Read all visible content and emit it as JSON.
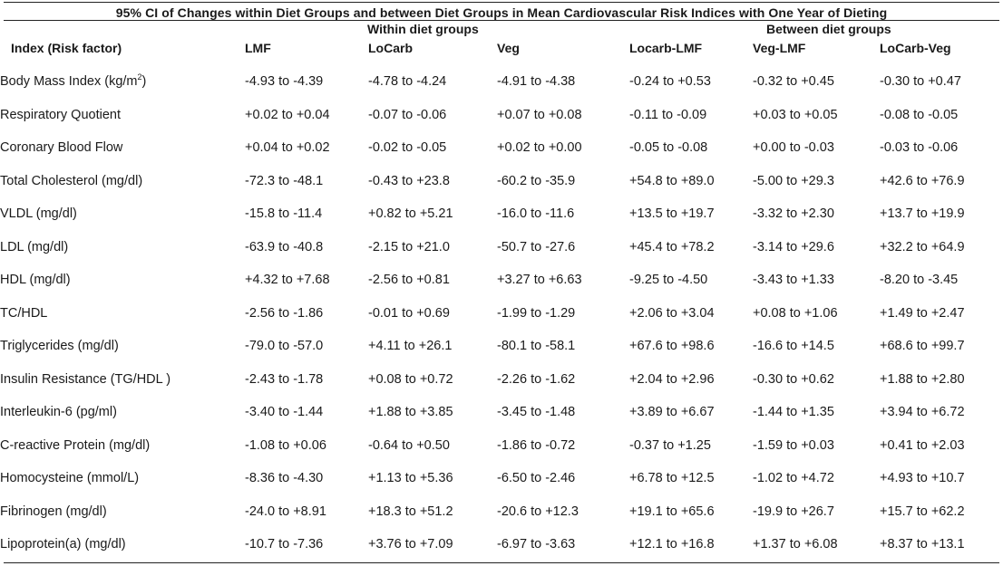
{
  "title": "95% CI of Changes within Diet Groups and between Diet Groups  in Mean Cardiovascular Risk Indices with One Year of Dieting",
  "groups": {
    "within": "Within diet groups",
    "between": "Between diet groups"
  },
  "columns": [
    "Index (Risk factor)",
    "LMF",
    "LoCarb",
    "Veg",
    "Locarb-LMF",
    "Veg-LMF",
    "LoCarb-Veg"
  ],
  "rows": [
    {
      "index": "Body Mass Index (kg/m",
      "index_sup": "2",
      "index_suffix": ")",
      "lmf": "-4.93 to -4.39",
      "locarb": " -4.78 to -4.24",
      "veg": "-4.91 to -4.38",
      "locarb_lmf": "-0.24 to +0.53",
      "veg_lmf": "-0.32 to +0.45",
      "locarb_veg": "-0.30 to +0.47"
    },
    {
      "index": "Respiratory Quotient",
      "lmf": "+0.02 to +0.04",
      "locarb": "-0.07 to -0.06",
      "veg": "+0.07 to +0.08",
      "locarb_lmf": "-0.11 to -0.09",
      "veg_lmf": "+0.03 to +0.05",
      "locarb_veg": "-0.08 to -0.05"
    },
    {
      "index": "Coronary Blood Flow",
      "lmf": "+0.04 to +0.02",
      "locarb": "-0.02 to -0.05",
      "veg": "+0.02 to +0.00",
      "locarb_lmf": "-0.05 to -0.08",
      "veg_lmf": "+0.00 to -0.03",
      "locarb_veg": "-0.03 to -0.06"
    },
    {
      "index": "Total Cholesterol (mg/dl)",
      "lmf": "-72.3 to -48.1",
      "locarb": "-0.43 to +23.8",
      "veg": "-60.2 to -35.9",
      "locarb_lmf": "+54.8 to +89.0",
      "veg_lmf": "-5.00 to +29.3",
      "locarb_veg": "+42.6 to +76.9"
    },
    {
      "index": "VLDL (mg/dl)",
      "lmf": "-15.8 to -11.4",
      "locarb": "+0.82 to +5.21",
      "veg": "-16.0 to -11.6",
      "locarb_lmf": "+13.5 to +19.7",
      "veg_lmf": "-3.32 to +2.30",
      "locarb_veg": "+13.7 to +19.9"
    },
    {
      "index": "LDL (mg/dl)",
      "lmf": "-63.9 to -40.8",
      "locarb": "-2.15 to +21.0",
      "veg": "-50.7 to -27.6",
      "locarb_lmf": "+45.4 to +78.2",
      "veg_lmf": "-3.14 to +29.6",
      "locarb_veg": "+32.2 to +64.9"
    },
    {
      "index": "HDL (mg/dl)",
      "lmf": "+4.32 to +7.68",
      "locarb": "-2.56 to +0.81",
      "veg": "+3.27 to +6.63",
      "locarb_lmf": "-9.25 to -4.50",
      "veg_lmf": "-3.43 to +1.33",
      "locarb_veg": "-8.20 to -3.45"
    },
    {
      "index": "TC/HDL",
      "lmf": "-2.56 to -1.86",
      "locarb": "-0.01 to +0.69",
      "veg": "-1.99 to -1.29",
      "locarb_lmf": "+2.06 to +3.04",
      "veg_lmf": "+0.08 to +1.06",
      "locarb_veg": "+1.49 to +2.47"
    },
    {
      "index": "Triglycerides (mg/dl)",
      "lmf": "-79.0 to -57.0",
      "locarb": "+4.11 to +26.1",
      "veg": "-80.1 to -58.1",
      "locarb_lmf": "+67.6 to +98.6",
      "veg_lmf": "-16.6 to +14.5",
      "locarb_veg": "+68.6 to +99.7"
    },
    {
      "index": "Insulin Resistance (TG/HDL )",
      "lmf": "-2.43 to -1.78",
      "locarb": "+0.08 to +0.72",
      "veg": "-2.26 to -1.62",
      "locarb_lmf": "+2.04 to +2.96",
      "veg_lmf": "-0.30 to +0.62",
      "locarb_veg": "+1.88 to +2.80"
    },
    {
      "index": "Interleukin-6 (pg/ml)",
      "lmf": "-3.40 to -1.44",
      "locarb": "+1.88 to +3.85",
      "veg": "-3.45 to -1.48",
      "locarb_lmf": "+3.89 to +6.67",
      "veg_lmf": "-1.44 to +1.35",
      "locarb_veg": "+3.94 to +6.72"
    },
    {
      "index": "C-reactive Protein (mg/dl)",
      "lmf": "-1.08 to +0.06",
      "locarb": "-0.64 to +0.50",
      "veg": "-1.86 to -0.72",
      "locarb_lmf": "-0.37 to +1.25",
      "veg_lmf": "-1.59 to +0.03",
      "locarb_veg": "+0.41 to +2.03"
    },
    {
      "index": "Homocysteine (mmol/L)",
      "lmf": "-8.36 to -4.30",
      "locarb": "+1.13 to +5.36",
      "veg": "-6.50 to -2.46",
      "locarb_lmf": "+6.78 to +12.5",
      "veg_lmf": "-1.02 to +4.72",
      "locarb_veg": "+4.93 to +10.7"
    },
    {
      "index": "Fibrinogen (mg/dl)",
      "lmf": "-24.0 to +8.91",
      "locarb": "+18.3 to +51.2",
      "veg": "-20.6 to +12.3",
      "locarb_lmf": "+19.1 to +65.6",
      "veg_lmf": "-19.9 to +26.7",
      "locarb_veg": "+15.7 to +62.2"
    },
    {
      "index": "Lipoprotein(a) (mg/dl)",
      "lmf": "-10.7 to -7.36",
      "locarb": "+3.76 to +7.09",
      "veg": "-6.97 to -3.63",
      "locarb_lmf": "+12.1 to +16.8",
      "veg_lmf": "+1.37 to +6.08",
      "locarb_veg": "+8.37 to +13.1"
    }
  ]
}
